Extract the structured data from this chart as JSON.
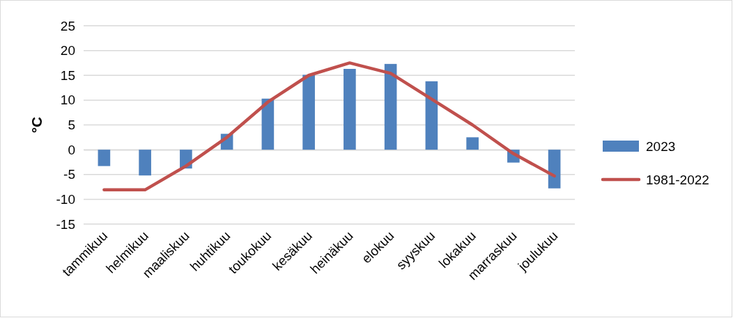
{
  "chart_data": {
    "type": "bar",
    "ylabel": "°C",
    "categories": [
      "tammikuu",
      "helmikuu",
      "maaliskuu",
      "huhtikuu",
      "toukokuu",
      "kesäkuu",
      "heinäkuu",
      "elokuu",
      "syyskuu",
      "lokakuu",
      "marraskuu",
      "joulukuu"
    ],
    "series": [
      {
        "name": "2023",
        "color": "#4f81bd",
        "values": [
          -3.3,
          -5.2,
          -3.8,
          3.2,
          10.3,
          15.1,
          16.3,
          17.3,
          13.8,
          2.5,
          -2.6,
          -7.8
        ]
      },
      {
        "name": "1981-2022",
        "type": "line",
        "color": "#c0504d",
        "values": [
          -8.1,
          -8.1,
          -3.3,
          2.5,
          9.6,
          15.0,
          17.5,
          15.4,
          10.2,
          5.0,
          -0.8,
          -5.3
        ]
      }
    ],
    "ylim": [
      -15,
      25
    ],
    "yticks": [
      -15,
      -10,
      -5,
      0,
      5,
      10,
      15,
      20,
      25
    ],
    "grid": "y",
    "legend": "right",
    "marker": "none",
    "line_style": "solid"
  }
}
